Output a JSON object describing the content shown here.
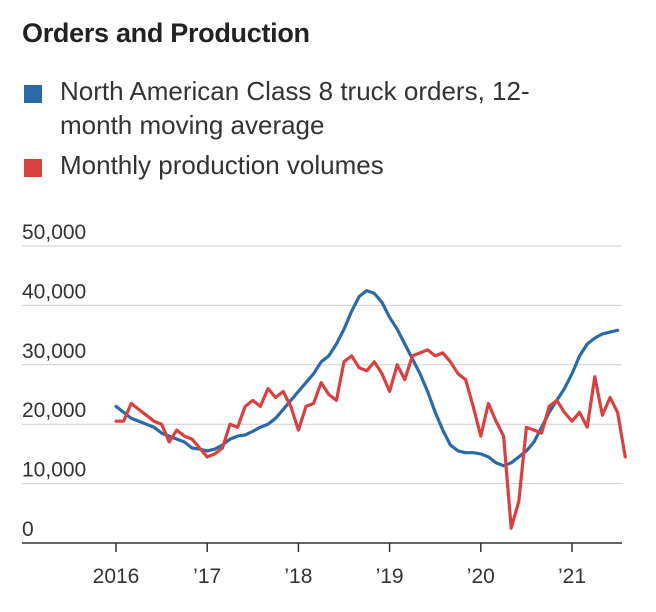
{
  "colors": {
    "orders": "#2a6aa8",
    "production": "#d94040",
    "grid": "#cfcfcf",
    "axis": "#333333"
  },
  "chart_data": {
    "type": "line",
    "title": "Orders and Production",
    "ylim": [
      0,
      50000
    ],
    "y_ticks": [
      {
        "value": 50000,
        "label": "50,000"
      },
      {
        "value": 40000,
        "label": "40,000"
      },
      {
        "value": 30000,
        "label": "30,000"
      },
      {
        "value": 20000,
        "label": "20,000"
      },
      {
        "value": 10000,
        "label": "10,000"
      },
      {
        "value": 0,
        "label": "0"
      }
    ],
    "x_ticks": [
      {
        "year": 2016,
        "label": "2016"
      },
      {
        "year": 2017,
        "label": "’17"
      },
      {
        "year": 2018,
        "label": "’18"
      },
      {
        "year": 2019,
        "label": "’19"
      },
      {
        "year": 2020,
        "label": "’20"
      },
      {
        "year": 2021,
        "label": "’21"
      }
    ],
    "x_range": [
      "2016-01",
      "2021-07"
    ],
    "grid": "horizontal",
    "legend_position": "top",
    "series": [
      {
        "name": "North American Class 8 truck orders, 12-month moving average",
        "color": "#2a6aa8",
        "points": [
          [
            "2016-01",
            23000
          ],
          [
            "2016-02",
            22000
          ],
          [
            "2016-03",
            21000
          ],
          [
            "2016-04",
            20500
          ],
          [
            "2016-05",
            20000
          ],
          [
            "2016-06",
            19500
          ],
          [
            "2016-07",
            18500
          ],
          [
            "2016-08",
            18000
          ],
          [
            "2016-09",
            17500
          ],
          [
            "2016-10",
            17000
          ],
          [
            "2016-11",
            16000
          ],
          [
            "2016-12",
            15800
          ],
          [
            "2017-01",
            15500
          ],
          [
            "2017-02",
            15800
          ],
          [
            "2017-03",
            16500
          ],
          [
            "2017-04",
            17500
          ],
          [
            "2017-05",
            18000
          ],
          [
            "2017-06",
            18200
          ],
          [
            "2017-07",
            18800
          ],
          [
            "2017-08",
            19500
          ],
          [
            "2017-09",
            20000
          ],
          [
            "2017-10",
            21000
          ],
          [
            "2017-11",
            22500
          ],
          [
            "2017-12",
            24000
          ],
          [
            "2018-01",
            25500
          ],
          [
            "2018-02",
            27000
          ],
          [
            "2018-03",
            28500
          ],
          [
            "2018-04",
            30500
          ],
          [
            "2018-05",
            31500
          ],
          [
            "2018-06",
            33500
          ],
          [
            "2018-07",
            36000
          ],
          [
            "2018-08",
            39000
          ],
          [
            "2018-09",
            41500
          ],
          [
            "2018-10",
            42500
          ],
          [
            "2018-11",
            42000
          ],
          [
            "2018-12",
            40500
          ],
          [
            "2019-01",
            38000
          ],
          [
            "2019-02",
            36000
          ],
          [
            "2019-03",
            33500
          ],
          [
            "2019-04",
            31000
          ],
          [
            "2019-05",
            28500
          ],
          [
            "2019-06",
            25500
          ],
          [
            "2019-07",
            22000
          ],
          [
            "2019-08",
            19000
          ],
          [
            "2019-09",
            16500
          ],
          [
            "2019-10",
            15500
          ],
          [
            "2019-11",
            15200
          ],
          [
            "2019-12",
            15200
          ],
          [
            "2020-01",
            15000
          ],
          [
            "2020-02",
            14500
          ],
          [
            "2020-03",
            13500
          ],
          [
            "2020-04",
            13000
          ],
          [
            "2020-05",
            13500
          ],
          [
            "2020-06",
            14500
          ],
          [
            "2020-07",
            15500
          ],
          [
            "2020-08",
            17000
          ],
          [
            "2020-09",
            19500
          ],
          [
            "2020-10",
            22000
          ],
          [
            "2020-11",
            24000
          ],
          [
            "2020-12",
            26000
          ],
          [
            "2021-01",
            28500
          ],
          [
            "2021-02",
            31500
          ],
          [
            "2021-03",
            33500
          ],
          [
            "2021-04",
            34500
          ],
          [
            "2021-05",
            35200
          ],
          [
            "2021-06",
            35500
          ],
          [
            "2021-07",
            35800
          ]
        ]
      },
      {
        "name": "Monthly production volumes",
        "color": "#d94040",
        "points": [
          [
            "2016-01",
            20500
          ],
          [
            "2016-02",
            20500
          ],
          [
            "2016-03",
            23500
          ],
          [
            "2016-04",
            22500
          ],
          [
            "2016-05",
            21500
          ],
          [
            "2016-06",
            20500
          ],
          [
            "2016-07",
            20000
          ],
          [
            "2016-08",
            17000
          ],
          [
            "2016-09",
            19000
          ],
          [
            "2016-10",
            18000
          ],
          [
            "2016-11",
            17500
          ],
          [
            "2016-12",
            16000
          ],
          [
            "2017-01",
            14500
          ],
          [
            "2017-02",
            15000
          ],
          [
            "2017-03",
            16000
          ],
          [
            "2017-04",
            20000
          ],
          [
            "2017-05",
            19500
          ],
          [
            "2017-06",
            23000
          ],
          [
            "2017-07",
            24000
          ],
          [
            "2017-08",
            23000
          ],
          [
            "2017-09",
            26000
          ],
          [
            "2017-10",
            24500
          ],
          [
            "2017-11",
            25500
          ],
          [
            "2017-12",
            23000
          ],
          [
            "2018-01",
            19000
          ],
          [
            "2018-02",
            23000
          ],
          [
            "2018-03",
            23500
          ],
          [
            "2018-04",
            27000
          ],
          [
            "2018-05",
            25000
          ],
          [
            "2018-06",
            24000
          ],
          [
            "2018-07",
            30500
          ],
          [
            "2018-08",
            31500
          ],
          [
            "2018-09",
            29500
          ],
          [
            "2018-10",
            29000
          ],
          [
            "2018-11",
            30500
          ],
          [
            "2018-12",
            28500
          ],
          [
            "2019-01",
            25500
          ],
          [
            "2019-02",
            30000
          ],
          [
            "2019-03",
            27500
          ],
          [
            "2019-04",
            31500
          ],
          [
            "2019-05",
            32000
          ],
          [
            "2019-06",
            32500
          ],
          [
            "2019-07",
            31500
          ],
          [
            "2019-08",
            32000
          ],
          [
            "2019-09",
            30500
          ],
          [
            "2019-10",
            28500
          ],
          [
            "2019-11",
            27500
          ],
          [
            "2019-12",
            23000
          ],
          [
            "2020-01",
            18000
          ],
          [
            "2020-02",
            23500
          ],
          [
            "2020-03",
            20500
          ],
          [
            "2020-04",
            18000
          ],
          [
            "2020-05",
            2500
          ],
          [
            "2020-06",
            7000
          ],
          [
            "2020-07",
            19500
          ],
          [
            "2020-08",
            19000
          ],
          [
            "2020-09",
            18500
          ],
          [
            "2020-10",
            23000
          ],
          [
            "2020-11",
            24000
          ],
          [
            "2020-12",
            22000
          ],
          [
            "2021-01",
            20500
          ],
          [
            "2021-02",
            22000
          ],
          [
            "2021-03",
            19500
          ],
          [
            "2021-04",
            28000
          ],
          [
            "2021-05",
            21500
          ],
          [
            "2021-06",
            24500
          ],
          [
            "2021-07",
            22000
          ],
          [
            "2021-08",
            14500
          ]
        ]
      }
    ]
  }
}
